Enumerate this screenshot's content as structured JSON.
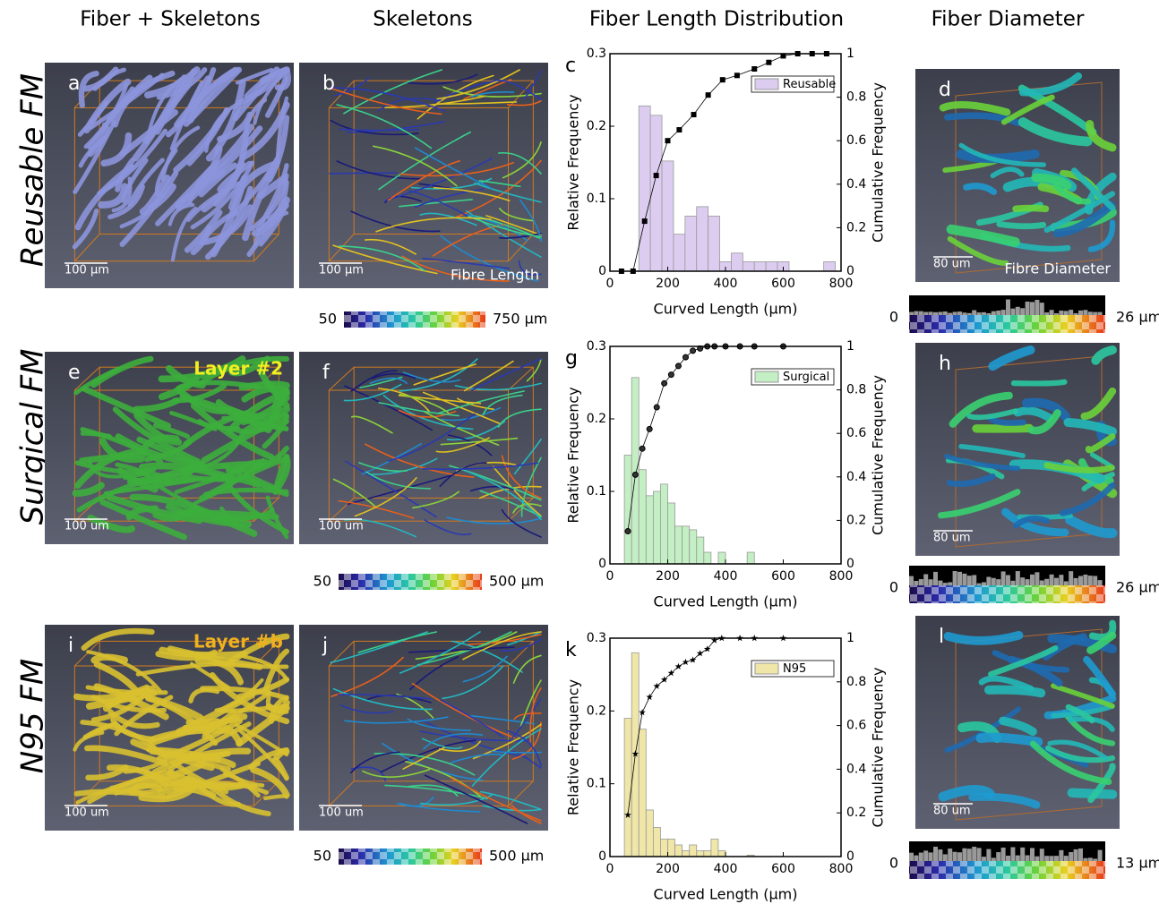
{
  "headers": [
    "Fiber + Skeletons",
    "Skeletons",
    "Fiber Length Distribution",
    "Fiber Diameter"
  ],
  "rows": [
    "Reusable FM",
    "Surgical FM",
    "N95 FM"
  ],
  "images": [
    {
      "label": "a",
      "scale_bar": "100 µm",
      "color": "#8c95dc"
    },
    {
      "label": "b",
      "scale_bar": "100 µm",
      "caption": "Fibre Length",
      "color": "skeleton"
    },
    {
      "label": "d",
      "scale_bar": "80 um",
      "caption": "Fibre Diameter",
      "color": "diameter"
    },
    {
      "label": "e",
      "scale_bar": "100 um",
      "layer": "Layer #2",
      "layer_color": "#f0f020",
      "color": "#3cae3c"
    },
    {
      "label": "f",
      "scale_bar": "100 um",
      "color": "skeleton"
    },
    {
      "label": "h",
      "scale_bar": "80 um",
      "color": "diameter"
    },
    {
      "label": "i",
      "scale_bar": "100 um",
      "layer": "Layer #b",
      "layer_color": "#f0b020",
      "color": "#d8c030"
    },
    {
      "label": "j",
      "scale_bar": "100 um",
      "color": "skeleton"
    },
    {
      "label": "l",
      "scale_bar": "80 um",
      "color": "diameter"
    }
  ],
  "length_colorbars": [
    {
      "min": "50",
      "max": "750 µm"
    },
    {
      "min": "50",
      "max": "500 µm"
    },
    {
      "min": "50",
      "max": "500 µm"
    }
  ],
  "diameter_colorbars": [
    {
      "min": "0",
      "max": "26 µm"
    },
    {
      "min": "0",
      "max": "26 µm"
    },
    {
      "min": "0",
      "max": "13 µm"
    }
  ],
  "chart_data": [
    {
      "type": "histogram",
      "panel": "c",
      "xlabel": "Curved Length (μm)",
      "ylabel": "Relative Frequency",
      "y2label": "Cumulative Frequency",
      "xlim": [
        0,
        800
      ],
      "xticks": [
        0,
        200,
        400,
        600,
        800
      ],
      "ylim": [
        0,
        0.3
      ],
      "yticks": [
        0,
        0.1,
        0.2,
        0.3
      ],
      "y2lim": [
        0,
        1
      ],
      "y2ticks": [
        0,
        0.2,
        0.4,
        0.6,
        0.8,
        1
      ],
      "legend": "upper right",
      "marker": "square",
      "bins": [
        100,
        140,
        180,
        220,
        260,
        300,
        340,
        380,
        420,
        460,
        500,
        540,
        580,
        620,
        660,
        700,
        740,
        780,
        820
      ],
      "series": [
        {
          "name": "Reusable",
          "color": "#dccdf0",
          "values": [
            0.228,
            0.215,
            0.152,
            0.051,
            0.076,
            0.089,
            0.076,
            0.013,
            0.025,
            0.013,
            0.013,
            0.013,
            0.013,
            0,
            0,
            0,
            0.013,
            0
          ]
        },
        {
          "color": "#000000",
          "axis": "y2",
          "x": [
            40,
            80,
            120,
            160,
            200,
            240,
            290,
            340,
            390,
            440,
            500,
            550,
            600,
            650,
            700,
            750
          ],
          "values": [
            0,
            0,
            0.23,
            0.44,
            0.6,
            0.65,
            0.72,
            0.81,
            0.88,
            0.9,
            0.93,
            0.96,
            0.99,
            1,
            1,
            1
          ]
        }
      ]
    },
    {
      "type": "histogram",
      "panel": "g",
      "xlabel": "Curved Length (μm)",
      "ylabel": "Relative Frequency",
      "y2label": "Cumulative Frequency",
      "xlim": [
        0,
        800
      ],
      "xticks": [
        0,
        200,
        400,
        600,
        800
      ],
      "ylim": [
        0,
        0.3
      ],
      "yticks": [
        0,
        0.1,
        0.2,
        0.3
      ],
      "y2lim": [
        0,
        1
      ],
      "y2ticks": [
        0,
        0.2,
        0.4,
        0.6,
        0.8,
        1
      ],
      "legend": "upper right",
      "marker": "circle",
      "bins": [
        50,
        75,
        100,
        125,
        150,
        175,
        200,
        225,
        250,
        275,
        300,
        325,
        350,
        375,
        400,
        425,
        450,
        475,
        500
      ],
      "series": [
        {
          "name": "Surgical",
          "color": "#c4efc4",
          "values": [
            0.15,
            0.257,
            0.13,
            0.094,
            0.1,
            0.11,
            0.084,
            0.052,
            0.052,
            0.047,
            0.037,
            0.016,
            0,
            0.016,
            0,
            0,
            0,
            0.016
          ]
        },
        {
          "color": "#000000",
          "axis": "y2",
          "x": [
            62,
            88,
            112,
            137,
            162,
            188,
            212,
            237,
            262,
            287,
            312,
            337,
            362,
            400,
            450,
            500,
            600
          ],
          "values": [
            0.15,
            0.41,
            0.53,
            0.62,
            0.72,
            0.83,
            0.87,
            0.91,
            0.95,
            0.98,
            0.99,
            1,
            1,
            1,
            1,
            1,
            1
          ]
        }
      ]
    },
    {
      "type": "histogram",
      "panel": "k",
      "xlabel": "Curved Length (μm)",
      "ylabel": "Relative Frequency",
      "y2label": "Cumulative Frequency",
      "xlim": [
        0,
        800
      ],
      "xticks": [
        0,
        200,
        400,
        600,
        800
      ],
      "ylim": [
        0,
        0.3
      ],
      "yticks": [
        0,
        0.1,
        0.2,
        0.3
      ],
      "y2lim": [
        0,
        1
      ],
      "y2ticks": [
        0,
        0.2,
        0.4,
        0.6,
        0.8,
        1
      ],
      "legend": "upper right",
      "marker": "star",
      "bins": [
        50,
        75,
        100,
        125,
        150,
        175,
        200,
        225,
        250,
        275,
        300,
        325,
        350,
        375,
        400,
        425,
        450,
        475,
        500
      ],
      "series": [
        {
          "name": "N95",
          "color": "#efe6a8",
          "values": [
            0.19,
            0.28,
            0.175,
            0.064,
            0.04,
            0.024,
            0.024,
            0.016,
            0.008,
            0.016,
            0.008,
            0.008,
            0.024,
            0.008,
            0,
            0,
            0,
            0.002
          ]
        },
        {
          "color": "#000000",
          "axis": "y2",
          "x": [
            62,
            88,
            112,
            137,
            162,
            188,
            212,
            237,
            262,
            287,
            312,
            337,
            362,
            387,
            450,
            500,
            600
          ],
          "values": [
            0.19,
            0.47,
            0.66,
            0.73,
            0.78,
            0.81,
            0.84,
            0.87,
            0.89,
            0.9,
            0.93,
            0.95,
            0.99,
            1,
            1,
            1,
            1
          ]
        }
      ]
    }
  ]
}
